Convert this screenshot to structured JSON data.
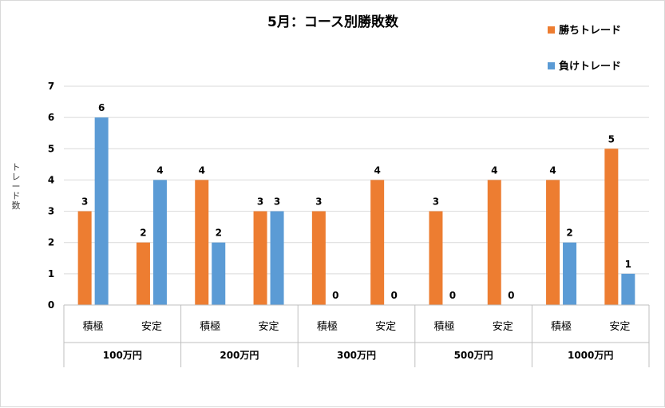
{
  "chart_data": {
    "type": "bar",
    "title": "5月：コース別勝敗数",
    "ylabel": "トレード数",
    "ylim": [
      0,
      7
    ],
    "yticks": [
      0,
      1,
      2,
      3,
      4,
      5,
      6,
      7
    ],
    "grid": true,
    "legend_position": "top-right",
    "groups": [
      "100万円",
      "200万円",
      "300万円",
      "500万円",
      "1000万円"
    ],
    "categories": [
      "積極",
      "安定",
      "積極",
      "安定",
      "積極",
      "安定",
      "積極",
      "安定",
      "積極",
      "安定"
    ],
    "series": [
      {
        "name": "勝ちトレード",
        "color": "#ED7D31",
        "values": [
          3,
          2,
          4,
          3,
          3,
          4,
          3,
          4,
          4,
          5
        ]
      },
      {
        "name": "負けトレード",
        "color": "#5B9BD5",
        "values": [
          6,
          4,
          2,
          3,
          0,
          0,
          0,
          0,
          2,
          1
        ]
      }
    ]
  }
}
